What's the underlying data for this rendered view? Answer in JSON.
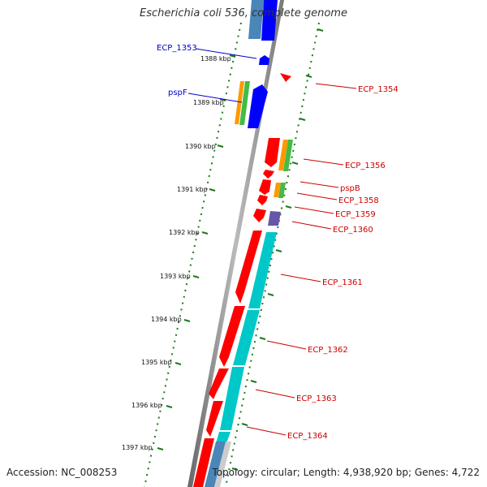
{
  "title": "Escherichia coli 536, complete genome",
  "accession_label": "Accession: NC_008253",
  "summary_label": "Topology: circular; Length: 4,938,920 bp; Genes: 4,722",
  "colors": {
    "backbone": "#888888",
    "ruler_tick": "#1a7a1a",
    "gene_red": "#ff0000",
    "gene_blue": "#0000ff",
    "gene_cyan": "#00c8c8",
    "gene_orange": "#ff9900",
    "gene_green": "#44bb44",
    "gene_purple": "#6655aa",
    "label_red": "#cc0000",
    "label_blue": "#0000cc"
  },
  "ruler": {
    "unit": "kbp",
    "ticks": [
      {
        "kbp": 1388,
        "label": "1388 kbp"
      },
      {
        "kbp": 1389,
        "label": "1389 kbp"
      },
      {
        "kbp": 1390,
        "label": "1390 kbp"
      },
      {
        "kbp": 1391,
        "label": "1391 kbp"
      },
      {
        "kbp": 1392,
        "label": "1392 kbp"
      },
      {
        "kbp": 1393,
        "label": "1393 kbp"
      },
      {
        "kbp": 1394,
        "label": "1394 kbp"
      },
      {
        "kbp": 1395,
        "label": "1395 kbp"
      },
      {
        "kbp": 1396,
        "label": "1396 kbp"
      },
      {
        "kbp": 1397,
        "label": "1397 kbp"
      }
    ]
  },
  "genes": [
    {
      "name": "ECP_1353",
      "strand": "-",
      "color": "blue",
      "side": "left",
      "start": 1387.9,
      "end": 1388.1
    },
    {
      "name": "pspF",
      "strand": "-",
      "color": "blue",
      "side": "left",
      "start": 1388.7,
      "end": 1389.2
    },
    {
      "name": "ECP_1354",
      "strand": "+",
      "color": "red",
      "side": "right",
      "start": 1388.1,
      "end": 1388.3
    },
    {
      "name": "ECP_1356",
      "strand": "+",
      "color": "red",
      "side": "right",
      "start": 1389.8,
      "end": 1390.5
    },
    {
      "name": "pspB",
      "strand": "+",
      "color": "red",
      "side": "right",
      "start": 1390.6,
      "end": 1390.8
    },
    {
      "name": "ECP_1358",
      "strand": "+",
      "color": "red",
      "side": "right",
      "start": 1390.8,
      "end": 1391.2
    },
    {
      "name": "ECP_1359",
      "strand": "+",
      "color": "red",
      "side": "right",
      "start": 1391.2,
      "end": 1391.4
    },
    {
      "name": "ECP_1360",
      "strand": "+",
      "color": "red",
      "side": "right",
      "start": 1391.4,
      "end": 1391.8
    },
    {
      "name": "ECP_1361",
      "strand": "+",
      "color": "red",
      "side": "right",
      "start": 1391.85,
      "end": 1393.6
    },
    {
      "name": "ECP_1362",
      "strand": "+",
      "color": "red",
      "side": "right",
      "start": 1393.6,
      "end": 1394.9
    },
    {
      "name": "ECP_1363",
      "strand": "+",
      "color": "red",
      "side": "right",
      "start": 1394.9,
      "end": 1396.0
    },
    {
      "name": "ECP_1364",
      "strand": "+",
      "color": "red",
      "side": "right",
      "start": 1396.0,
      "end": 1396.9
    }
  ]
}
